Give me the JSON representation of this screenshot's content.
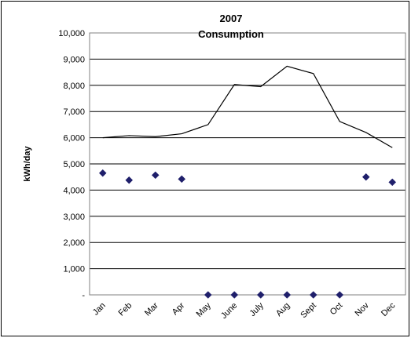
{
  "chart_data": {
    "type": "line",
    "title_lines": [
      "2007",
      "Consumption"
    ],
    "xlabel": "",
    "ylabel": "kWh/day",
    "ylim": [
      0,
      10000
    ],
    "yticks": [
      0,
      1000,
      2000,
      3000,
      4000,
      5000,
      6000,
      7000,
      8000,
      9000,
      10000
    ],
    "ytick_labels": [
      "-",
      "1,000",
      "2,000",
      "3,000",
      "4,000",
      "5,000",
      "6,000",
      "7,000",
      "8,000",
      "9,000",
      "10,000"
    ],
    "categories": [
      "Jan",
      "Feb",
      "Mar",
      "Apr",
      "May",
      "June",
      "July",
      "Aug",
      "Sept",
      "Oct",
      "Nov",
      "Dec"
    ],
    "grid": true,
    "legend": "none",
    "series": [
      {
        "style": "line",
        "color": "#000000",
        "values": [
          6000,
          6080,
          6040,
          6150,
          6500,
          8030,
          7950,
          8730,
          8450,
          6620,
          6200,
          5620
        ]
      },
      {
        "style": "markers",
        "marker": "diamond",
        "color": "#1F1F6B",
        "values": [
          4650,
          4380,
          4570,
          4420,
          0,
          0,
          0,
          0,
          0,
          0,
          4500,
          4300
        ]
      }
    ]
  }
}
